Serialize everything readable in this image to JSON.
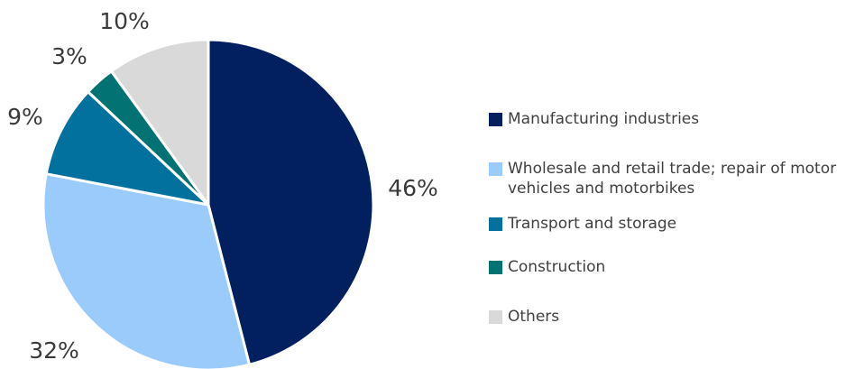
{
  "chart_data": {
    "type": "pie",
    "title": "",
    "slices": [
      {
        "label": "Manufacturing industries",
        "value": 46,
        "display": "46%",
        "color": "#022060"
      },
      {
        "label": "Wholesale and retail trade; repair of motor vehicles and motorbikes",
        "value": 32,
        "display": "32%",
        "color": "#9bcbfa"
      },
      {
        "label": "Transport and storage",
        "value": 9,
        "display": "9%",
        "color": "#02719e"
      },
      {
        "label": "Construction",
        "value": 3,
        "display": "3%",
        "color": "#037272"
      },
      {
        "label": "Others",
        "value": 10,
        "display": "10%",
        "color": "#d9d9d9"
      }
    ],
    "start_angle": "12 o'clock",
    "direction": "clockwise",
    "legend_position": "right"
  }
}
